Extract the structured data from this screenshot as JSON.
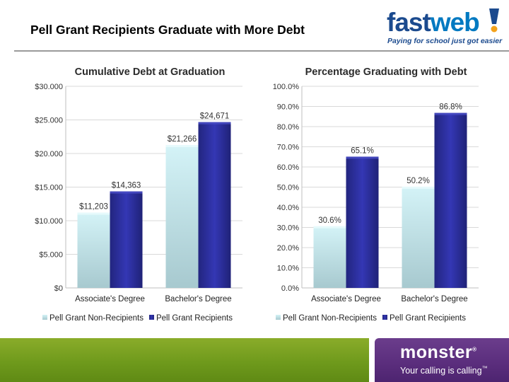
{
  "slide": {
    "title": "Pell Grant Recipients Graduate with More Debt"
  },
  "logos": {
    "fastweb": {
      "word_fast": "fast",
      "word_web": "web",
      "tagline": "Paying for school just got easier",
      "mark": "®"
    },
    "monster": {
      "word": "monster",
      "tagline": "Your calling is calling",
      "mark": "®",
      "tagline_mark": "™"
    }
  },
  "colors": {
    "non_recipients": "#bfeaf0",
    "recipients": "#2b2e9c",
    "footer_green": "#77a01f",
    "footer_purple": "#5a2d7c",
    "fastweb_blue": "#1b4a8e"
  },
  "chart_data": [
    {
      "type": "bar",
      "title": "Cumulative Debt at Graduation",
      "categories": [
        "Associate's Degree",
        "Bachelor's Degree"
      ],
      "series": [
        {
          "name": "Pell Grant Non-Recipients",
          "values": [
            11203,
            21266
          ],
          "labels": [
            "$11,203",
            "$21,266"
          ]
        },
        {
          "name": "Pell Grant Recipients",
          "values": [
            14363,
            24671
          ],
          "labels": [
            "$14,363",
            "$24,671"
          ]
        }
      ],
      "ylim": [
        0,
        30000
      ],
      "yticks": [
        0,
        5000,
        10000,
        15000,
        20000,
        25000,
        30000
      ],
      "ytick_labels": [
        "$0",
        "$5.000",
        "$10.000",
        "$15.000",
        "$20.000",
        "$25.000",
        "$30.000"
      ],
      "xlabel": "",
      "ylabel": "",
      "grid": true,
      "legend": "bottom"
    },
    {
      "type": "bar",
      "title": "Percentage Graduating with Debt",
      "categories": [
        "Associate's Degree",
        "Bachelor's Degree"
      ],
      "series": [
        {
          "name": "Pell Grant Non-Recipients",
          "values": [
            30.6,
            50.2
          ],
          "labels": [
            "30.6%",
            "50.2%"
          ]
        },
        {
          "name": "Pell Grant Recipients",
          "values": [
            65.1,
            86.8
          ],
          "labels": [
            "65.1%",
            "86.8%"
          ]
        }
      ],
      "ylim": [
        0,
        100
      ],
      "yticks": [
        0,
        10,
        20,
        30,
        40,
        50,
        60,
        70,
        80,
        90,
        100
      ],
      "ytick_labels": [
        "0.0%",
        "10.0%",
        "20.0%",
        "30.0%",
        "40.0%",
        "50.0%",
        "60.0%",
        "70.0%",
        "80.0%",
        "90.0%",
        "100.0%"
      ],
      "xlabel": "",
      "ylabel": "",
      "grid": true,
      "legend": "bottom"
    }
  ]
}
